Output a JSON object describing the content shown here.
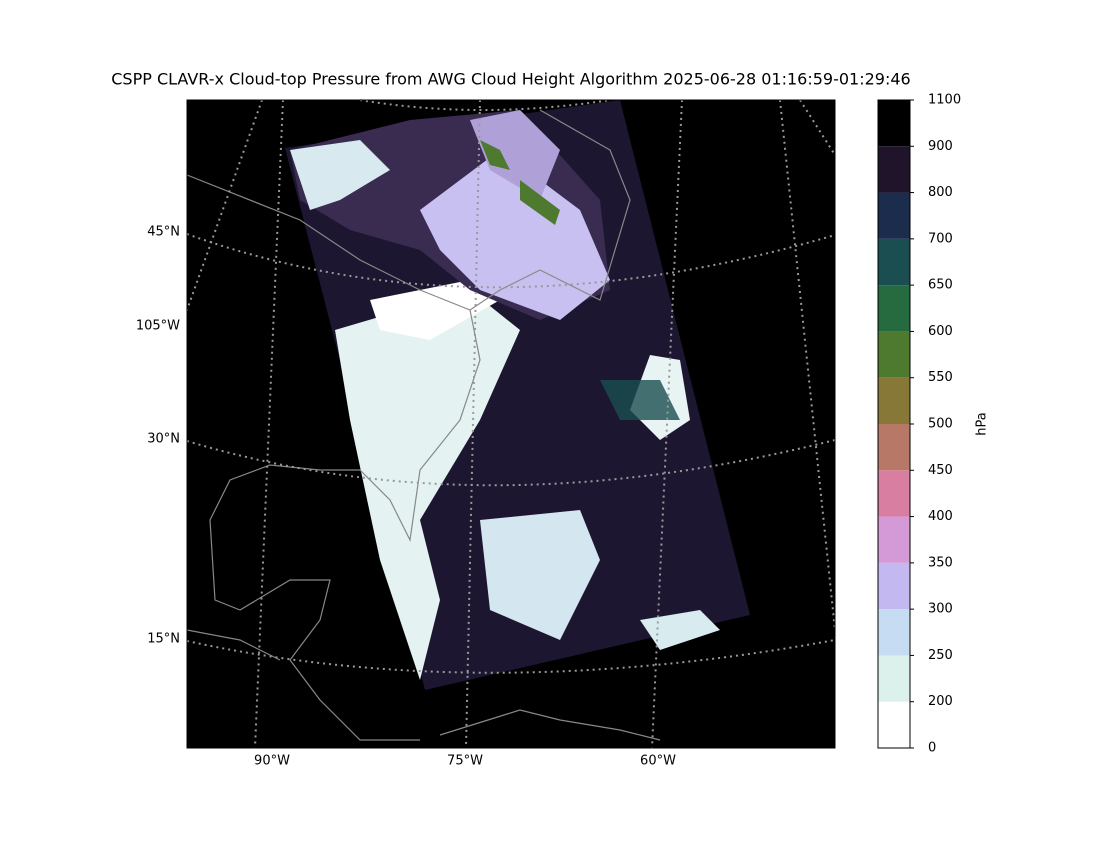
{
  "title": "CSPP CLAVR-x Cloud-top Pressure from AWG Cloud Height Algorithm 2025-06-28 01:16:59-01:29:46",
  "map": {
    "lat_labels": [
      "45°N",
      "105°W",
      "30°N",
      "15°N"
    ],
    "lon_labels": [
      "90°W",
      "75°W",
      "60°W"
    ]
  },
  "colorbar": {
    "label": "hPa",
    "ticks": [
      0,
      200,
      250,
      300,
      350,
      400,
      450,
      500,
      550,
      600,
      650,
      700,
      800,
      900,
      1100
    ],
    "colors": [
      "#ffffff",
      "#dcf0ec",
      "#c6dcf2",
      "#c4b8f0",
      "#d49ad8",
      "#d87ea0",
      "#b87868",
      "#887838",
      "#4e7a30",
      "#266a40",
      "#1a4e50",
      "#1c2c4c",
      "#20142a",
      "#000000"
    ]
  }
}
